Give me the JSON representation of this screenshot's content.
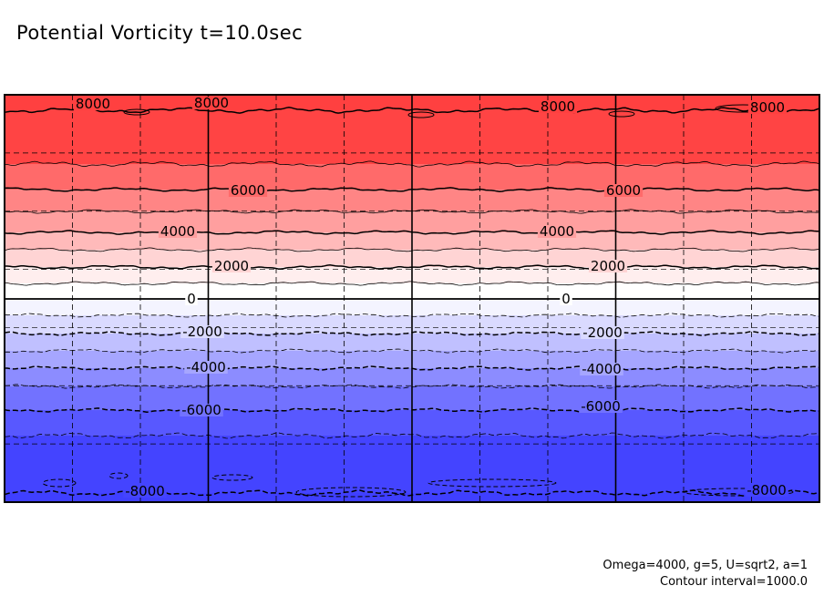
{
  "chart_data": {
    "type": "contour",
    "title": "Potential Vorticity t=10.0sec",
    "contour_interval": 1000,
    "color_scale": {
      "low": "#3f3fff",
      "mid": "#ffffff",
      "high": "#ff4040"
    },
    "bands": [
      {
        "lower": 8000,
        "upper": 9000,
        "color": "#ff4040"
      },
      {
        "lower": 7000,
        "upper": 8000,
        "color": "#ff4444"
      },
      {
        "lower": 6000,
        "upper": 7000,
        "color": "#ff6a6a"
      },
      {
        "lower": 5000,
        "upper": 6000,
        "color": "#ff8585"
      },
      {
        "lower": 4000,
        "upper": 5000,
        "color": "#ff9f9f"
      },
      {
        "lower": 3000,
        "upper": 4000,
        "color": "#ffbaba"
      },
      {
        "lower": 2000,
        "upper": 3000,
        "color": "#ffd4d4"
      },
      {
        "lower": 1000,
        "upper": 2000,
        "color": "#ffeeee"
      },
      {
        "lower": 0,
        "upper": 1000,
        "color": "#ffffff"
      },
      {
        "lower": -1000,
        "upper": 0,
        "color": "#f4f4ff"
      },
      {
        "lower": -2000,
        "upper": -1000,
        "color": "#dadaff"
      },
      {
        "lower": -3000,
        "upper": -2000,
        "color": "#c0c0ff"
      },
      {
        "lower": -4000,
        "upper": -3000,
        "color": "#a6a6ff"
      },
      {
        "lower": -5000,
        "upper": -4000,
        "color": "#8c8cff"
      },
      {
        "lower": -6000,
        "upper": -5000,
        "color": "#7272ff"
      },
      {
        "lower": -7000,
        "upper": -6000,
        "color": "#5858ff"
      },
      {
        "lower": -8000,
        "upper": -7000,
        "color": "#4444ff"
      },
      {
        "lower": -9000,
        "upper": -8000,
        "color": "#3f3fff"
      }
    ],
    "contour_levels": [
      8000,
      7000,
      6000,
      5000,
      4000,
      3000,
      2000,
      1000,
      0,
      -1000,
      -2000,
      -3000,
      -4000,
      -5000,
      -6000,
      -7000,
      -8000
    ],
    "labeled_levels": [
      {
        "level": 8000,
        "labels": [
          "8000",
          "8000",
          "8000",
          "8000"
        ]
      },
      {
        "level": 6000,
        "labels": [
          "6000",
          "6000"
        ]
      },
      {
        "level": 4000,
        "labels": [
          "4000",
          "4000"
        ]
      },
      {
        "level": 2000,
        "labels": [
          "2000",
          "2000"
        ]
      },
      {
        "level": 0,
        "labels": [
          "0",
          "0"
        ]
      },
      {
        "level": -2000,
        "labels": [
          "-2000",
          "-2000"
        ]
      },
      {
        "level": -4000,
        "labels": [
          "-4000",
          "-4000"
        ]
      },
      {
        "level": -6000,
        "labels": [
          "-6000",
          "-6000"
        ]
      },
      {
        "level": -8000,
        "labels": [
          "-8000",
          "-8000"
        ]
      }
    ],
    "negative_contours": "dashed",
    "grid": {
      "major_solid_divisions": 4,
      "minor_dashed_per_major": 3,
      "horizontal_dashed_lines": 6
    },
    "annotations": [
      "Omega=4000, g=5, U=sqrt2, a=1",
      "Contour interval=1000.0"
    ]
  }
}
